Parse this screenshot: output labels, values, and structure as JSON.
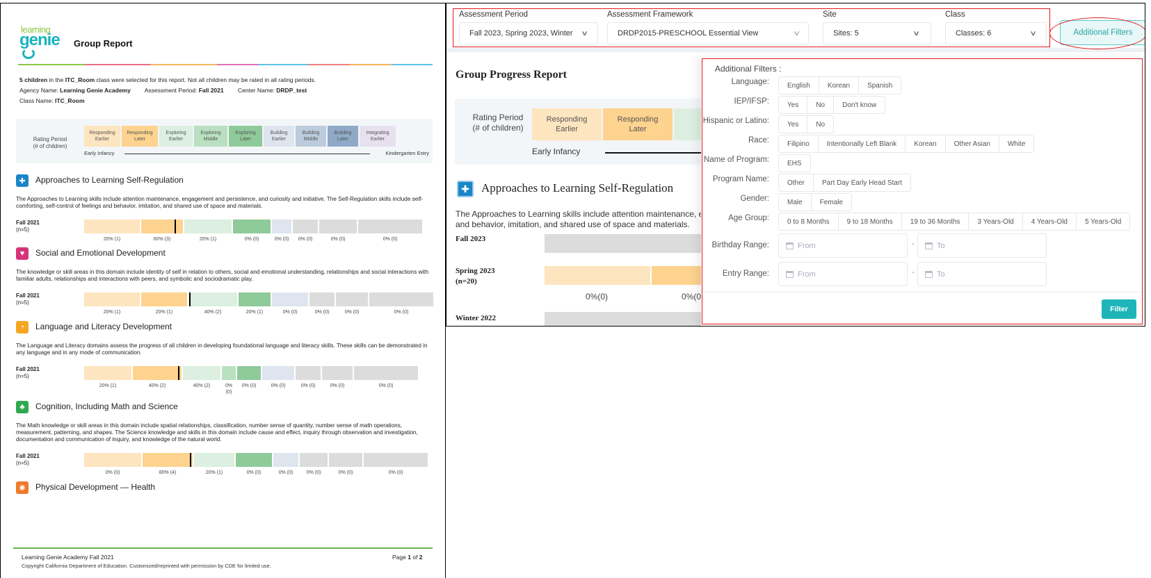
{
  "report": {
    "logo": {
      "line1": "learning",
      "line2": "genie"
    },
    "title": "Group Report",
    "intro": {
      "count": "5 children",
      "t1": " in the ",
      "class": "ITC_Room",
      "t2": " class were selected for this report. Not all children may be rated in all rating periods."
    },
    "meta": {
      "agency_label": "Agency Name: ",
      "agency": "Learning Genie Academy",
      "period_label": "Assessment Period: ",
      "period": "Fall 2021",
      "center_label": "Center Name: ",
      "center": "DRDP_test",
      "class_label": "Class Name: ",
      "class": "ITC_Room"
    },
    "legend": {
      "label_line1": "Rating Period",
      "label_line2": "(# of children)",
      "levels": [
        {
          "l1": "Responding",
          "l2": "Earlier",
          "color": "#fde5bf"
        },
        {
          "l1": "Responding",
          "l2": "Later",
          "color": "#fdd38f"
        },
        {
          "l1": "Exploring",
          "l2": "Earlier",
          "color": "#dcefe0"
        },
        {
          "l1": "Exploring",
          "l2": "Middle",
          "color": "#b9e0c1"
        },
        {
          "l1": "Exploring",
          "l2": "Later",
          "color": "#8fca9a"
        },
        {
          "l1": "Building",
          "l2": "Earlier",
          "color": "#dee5ef"
        },
        {
          "l1": "Building",
          "l2": "Middle",
          "color": "#bccbdd"
        },
        {
          "l1": "Building",
          "l2": "Later",
          "color": "#8fa9c6"
        },
        {
          "l1": "Integrating",
          "l2": "Earlier",
          "color": "#e7e1ef"
        }
      ],
      "axis_start": "Early Infancy",
      "axis_end": "Kindergarten Entry"
    },
    "domains": [
      {
        "title": "Approaches to Learning Self-Regulation",
        "icon": "puzzle-icon",
        "icon_color": "#1a86c7",
        "icon_glyph": "✚",
        "description": "The Approaches to Learning skills include attention maintenance, engagement and persistence, and curiosity and initiative. The Self-Regulation skills include self-comforting, self-control of feelings and behavior, imitation, and shared use of space and materials.",
        "period": "Fall 2021",
        "n": "(n=5)",
        "pcts": [
          "20% (1)",
          "60% (3)",
          "20% (1)",
          "0% (0)",
          "0% (0)",
          "0% (0)",
          "0% (0)",
          "0% (0)"
        ]
      },
      {
        "title": "Social and Emotional Development",
        "icon": "heart-icon",
        "icon_color": "#d6337a",
        "icon_glyph": "♥",
        "description": "The knowledge or skill areas in this domain include identity of self in relation to others, social and emotional understanding, relationships and social interactions with familiar adults, relationships and interactions with peers, and symbolic and sociodramatic play.",
        "period": "Fall 2021",
        "n": "(n=5)",
        "pcts": [
          "20% (1)",
          "20% (1)",
          "40% (2)",
          "20% (1)",
          "0% (0)",
          "0% (0)",
          "0% (0)",
          "0% (0)"
        ]
      },
      {
        "title": "Language and Literacy Development",
        "icon": "speech-bubble-icon",
        "icon_color": "#f5a623",
        "icon_glyph": "◔",
        "description": "The Language and Literacy domains assess the progress of all children in developing foundational language and literacy skills. These skills can be demonstrated in any language and in any mode of communication.",
        "period": "Fall 2021",
        "n": "(n=5)",
        "pcts": [
          "20% (1)",
          "40% (2)",
          "40% (2)",
          "0% (0)",
          "0% (0)",
          "0% (0)",
          "0% (0)",
          "0% (0)",
          "0% (0)"
        ]
      },
      {
        "title": "Cognition, Including Math and Science",
        "icon": "math-science-icon",
        "icon_color": "#2fa84f",
        "icon_glyph": "♣",
        "description": "The Math knowledge or skill areas in this domain include spatial relationships, classification, number sense of quantity, number sense of math operations, measurement, patterning, and shapes. The Science knowledge and skills in this domain include cause and effect, inquiry through observation and investigation, documentation and communication of inquiry, and knowledge of the natural world.",
        "period": "Fall 2021",
        "n": "(n=5)",
        "pcts": [
          "0% (0)",
          "80% (4)",
          "20% (1)",
          "0% (0)",
          "0% (0)",
          "0% (0)",
          "0% (0)",
          "0% (0)"
        ]
      },
      {
        "title": "Physical Development — Health",
        "icon": "ball-icon",
        "icon_color": "#f07a2b",
        "icon_glyph": "✺"
      }
    ],
    "footer": {
      "line1": "Learning Genie Academy Fall 2021",
      "line2": "Copyright California Department of Education. Customized/reprinted with permission by CDE for limited use.",
      "page_prefix": "Page ",
      "page_num": "1",
      "page_mid": " of ",
      "page_total": "2"
    }
  },
  "app": {
    "filters": {
      "assessment_period": {
        "label": "Assessment Period",
        "value": "Fall 2023, Spring 2023, Winter"
      },
      "assessment_framework": {
        "label": "Assessment Framework",
        "value": "DRDP2015-PRESCHOOL Essential View"
      },
      "site": {
        "label": "Site",
        "value": "Sites: 5"
      },
      "class": {
        "label": "Class",
        "value": "Classes: 6"
      },
      "additional_filters_button": "Additional Filters"
    },
    "group_progress": {
      "title": "Group Progress Report",
      "rating_period_l1": "Rating Period",
      "rating_period_l2": "(# of children)",
      "levels": [
        {
          "l1": "Responding",
          "l2": "Earlier"
        },
        {
          "l1": "Responding",
          "l2": "Later"
        },
        {
          "l1": "Ex",
          "l2": "E"
        }
      ],
      "axis_start": "Early Infancy",
      "domain_title": "Approaches to Learning Self-Regulation",
      "domain_desc_l1": "The Approaches to Learning skills include attention maintenance, e",
      "domain_desc_l2": "and behavior, imitation, and shared use of space and materials.",
      "rows": [
        {
          "period": "Fall 2023",
          "n": ""
        },
        {
          "period": "Spring 2023",
          "n": "(n=20)",
          "pcts": [
            "0%(0)",
            "0%(0"
          ]
        },
        {
          "period": "Winter 2022",
          "n": ""
        }
      ]
    },
    "additional_filters": {
      "title": "Additional Filters :",
      "rows": [
        {
          "label": "Language:",
          "options": [
            "English",
            "Korean",
            "Spanish"
          ]
        },
        {
          "label": "IEP/IFSP:",
          "options": [
            "Yes",
            "No",
            "Don't know"
          ]
        },
        {
          "label": "Hispanic or Latino:",
          "options": [
            "Yes",
            "No"
          ]
        },
        {
          "label": "Race:",
          "options": [
            "Filipino",
            "Intentionally Left Blank",
            "Korean",
            "Other Asian",
            "White"
          ]
        },
        {
          "label": "Name of Program:",
          "options": [
            "EHS"
          ]
        },
        {
          "label": "Program Name:",
          "options": [
            "Other",
            "Part Day Early Head Start"
          ]
        },
        {
          "label": "Gender:",
          "options": [
            "Male",
            "Female"
          ]
        },
        {
          "label": "Age Group:",
          "options": [
            "0 to 8 Months",
            "9 to 18 Months",
            "19 to 36 Months",
            "3 Years-Old",
            "4 Years-Old",
            "5 Years-Old"
          ]
        }
      ],
      "birthday_range": {
        "label": "Birthday Range:",
        "from_placeholder": "From",
        "to_placeholder": "To",
        "separator": "-"
      },
      "entry_range": {
        "label": "Entry Range:",
        "from_placeholder": "From",
        "to_placeholder": "To",
        "separator": "-"
      },
      "filter_button": "Filter"
    },
    "colors": {
      "accent": "#1fb5b8",
      "annotation_red": "#e0161c"
    }
  },
  "chart_data": [
    {
      "type": "bar",
      "title": "Approaches to Learning Self-Regulation",
      "categories": [
        "Responding Earlier",
        "Responding Later",
        "Exploring Earlier",
        "Exploring Middle",
        "Exploring Later",
        "Building Earlier",
        "Building Middle",
        "Building Later",
        "Integrating Earlier"
      ],
      "series": [
        {
          "name": "Fall 2021 (n=5)",
          "labels": [
            "20% (1)",
            "60% (3)",
            "20% (1)",
            "0% (0)",
            "0% (0)",
            "0% (0)",
            "0% (0)",
            "0% (0)"
          ],
          "percent": [
            20,
            60,
            20,
            0,
            0,
            0,
            0,
            0
          ],
          "count": [
            1,
            3,
            1,
            0,
            0,
            0,
            0,
            0
          ]
        }
      ]
    },
    {
      "type": "bar",
      "title": "Social and Emotional Development",
      "categories": [
        "Responding Earlier",
        "Responding Later",
        "Exploring Earlier",
        "Exploring Middle",
        "Exploring Later",
        "Building Earlier",
        "Building Middle",
        "Building Later",
        "Integrating Earlier"
      ],
      "series": [
        {
          "name": "Fall 2021 (n=5)",
          "labels": [
            "20% (1)",
            "20% (1)",
            "40% (2)",
            "20% (1)",
            "0% (0)",
            "0% (0)",
            "0% (0)",
            "0% (0)"
          ],
          "percent": [
            20,
            20,
            40,
            20,
            0,
            0,
            0,
            0
          ],
          "count": [
            1,
            1,
            2,
            1,
            0,
            0,
            0,
            0
          ]
        }
      ]
    },
    {
      "type": "bar",
      "title": "Language and Literacy Development",
      "categories": [
        "Responding Earlier",
        "Responding Later",
        "Exploring Earlier",
        "Exploring Middle",
        "Exploring Later",
        "Building Earlier",
        "Building Middle",
        "Building Later",
        "Integrating Earlier"
      ],
      "series": [
        {
          "name": "Fall 2021 (n=5)",
          "labels": [
            "20% (1)",
            "40% (2)",
            "40% (2)",
            "0% (0)",
            "0% (0)",
            "0% (0)",
            "0% (0)",
            "0% (0)",
            "0% (0)"
          ],
          "percent": [
            20,
            40,
            40,
            0,
            0,
            0,
            0,
            0,
            0
          ],
          "count": [
            1,
            2,
            2,
            0,
            0,
            0,
            0,
            0,
            0
          ]
        }
      ]
    },
    {
      "type": "bar",
      "title": "Cognition, Including Math and Science",
      "categories": [
        "Responding Earlier",
        "Responding Later",
        "Exploring Earlier",
        "Exploring Middle",
        "Exploring Later",
        "Building Earlier",
        "Building Middle",
        "Building Later",
        "Integrating Earlier"
      ],
      "series": [
        {
          "name": "Fall 2021 (n=5)",
          "labels": [
            "0% (0)",
            "80% (4)",
            "20% (1)",
            "0% (0)",
            "0% (0)",
            "0% (0)",
            "0% (0)",
            "0% (0)"
          ],
          "percent": [
            0,
            80,
            20,
            0,
            0,
            0,
            0,
            0
          ],
          "count": [
            0,
            4,
            1,
            0,
            0,
            0,
            0,
            0
          ]
        }
      ]
    }
  ]
}
